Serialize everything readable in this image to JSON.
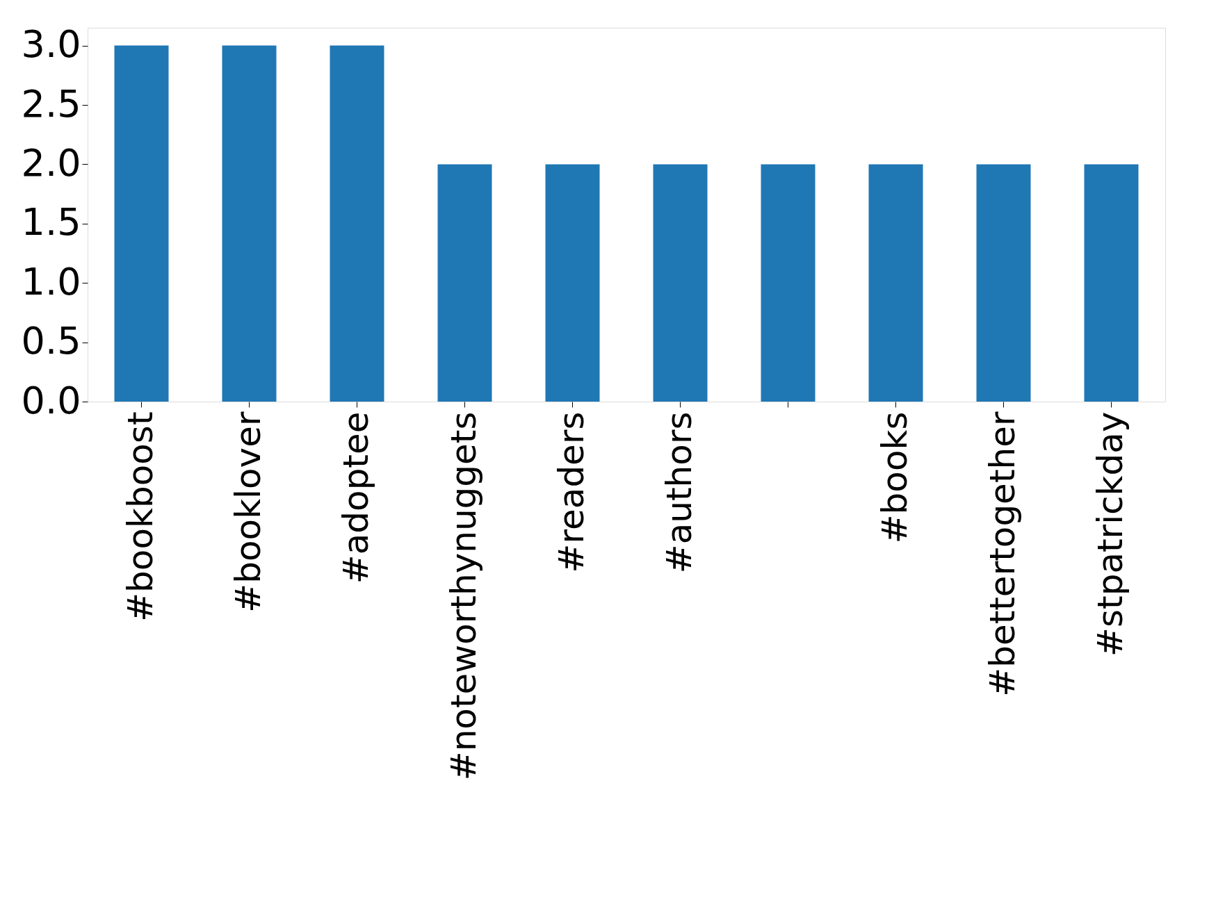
{
  "chart_data": {
    "type": "bar",
    "categories": [
      "#bookboost",
      "#booklover",
      "#adoptee",
      "#noteworthynuggets",
      "#readers",
      "#authors",
      null,
      "#books",
      "#bettertogether",
      "#stpatrickday"
    ],
    "values": [
      3,
      3,
      3,
      2,
      2,
      2,
      2,
      2,
      2,
      2
    ],
    "color": "#1f77b4",
    "ylim": [
      0,
      3.15
    ],
    "yticks": [
      {
        "value": 0,
        "label": "0.0"
      },
      0.5,
      {
        "value": 1,
        "label": "1.0"
      },
      1.5,
      {
        "value": 2,
        "label": "2.0"
      },
      2.5,
      {
        "value": 3,
        "label": "3.0"
      }
    ],
    "grid": false
  }
}
